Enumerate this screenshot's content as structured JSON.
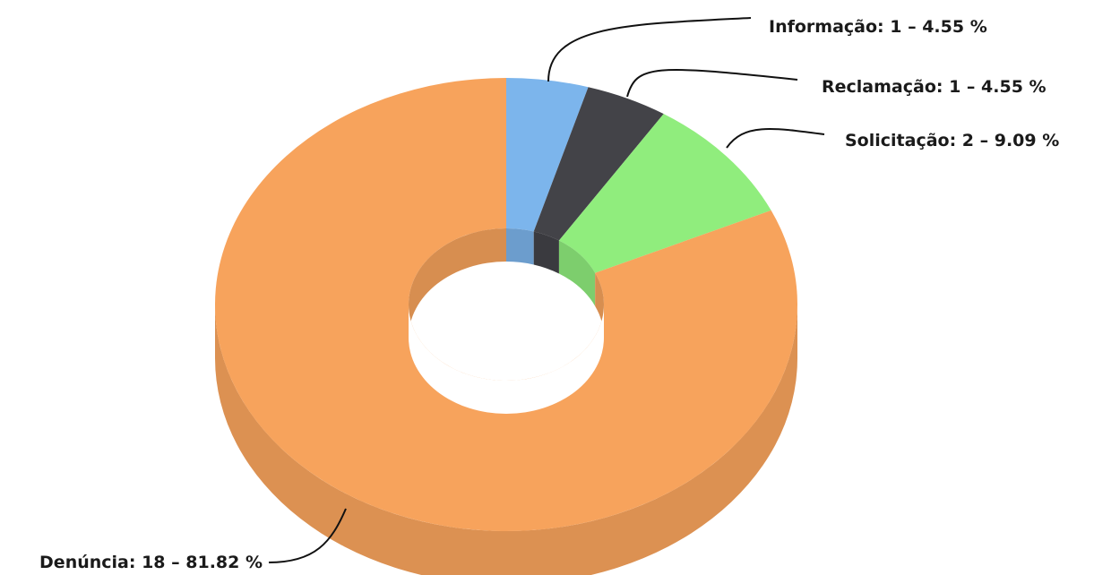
{
  "chart_data": {
    "type": "pie",
    "variant": "3d-donut",
    "title": "",
    "categories": [
      "Informação",
      "Reclamação",
      "Solicitação",
      "Denúncia"
    ],
    "values": [
      1,
      1,
      2,
      18
    ],
    "percentages": [
      4.55,
      4.55,
      9.09,
      81.82
    ],
    "colors": [
      "#7cb5ec",
      "#434348",
      "#90ed7d",
      "#f7a35c"
    ],
    "labels": [
      "Informação: 1 – 4.55 %",
      "Reclamação: 1 – 4.55 %",
      "Solicitação: 2 – 9.09 %",
      "Denúncia: 18 – 81.82 %"
    ],
    "legend": "none"
  }
}
